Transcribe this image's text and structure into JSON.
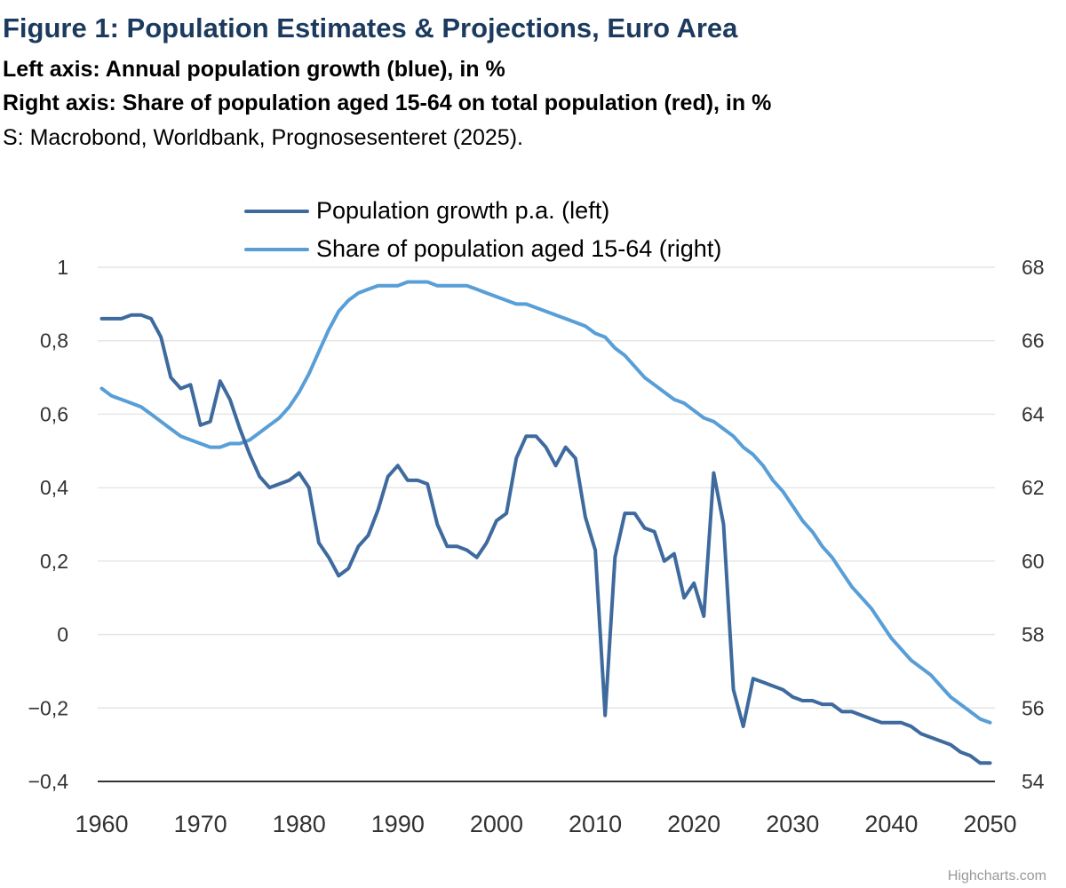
{
  "header": {
    "title": "Figure 1: Population Estimates & Projections, Euro Area",
    "subtitle_left": "Left axis: Annual population growth (blue), in %",
    "subtitle_right": "Right axis: Share of population aged 15-64 on total population (red), in %",
    "source": "S: Macrobond, Worldbank, Prognosesenteret (2025)."
  },
  "credit": "Highcharts.com",
  "colors": {
    "title": "#1b3a5e",
    "growth": "#3e6a9e",
    "share": "#589ed7",
    "grid": "#e6e6e6",
    "axis": "#333333"
  },
  "chart_data": {
    "type": "line",
    "title": "Figure 1: Population Estimates & Projections, Euro Area",
    "xlabel": "",
    "ylabel_left": "Annual population growth, %",
    "ylabel_right": "Share of population aged 15-64, %",
    "xlim": [
      1960,
      2050
    ],
    "ylim_left": [
      -0.4,
      1
    ],
    "ylim_right": [
      54,
      68
    ],
    "grid": true,
    "legend_position": "top-center",
    "x_ticks": [
      "1960",
      "1970",
      "1980",
      "1990",
      "2000",
      "2010",
      "2020",
      "2030",
      "2040",
      "2050"
    ],
    "y_left_ticks": [
      "1",
      "0,8",
      "0,6",
      "0,4",
      "0,2",
      "0",
      "−0,2",
      "−0,4"
    ],
    "y_right_ticks": [
      "68",
      "66",
      "64",
      "62",
      "60",
      "58",
      "56",
      "54"
    ],
    "x_start": 1960,
    "series": [
      {
        "name": "Population growth p.a. (left)",
        "axis": "left",
        "color": "#3e6a9e",
        "values": [
          0.86,
          0.86,
          0.86,
          0.87,
          0.87,
          0.86,
          0.81,
          0.7,
          0.67,
          0.68,
          0.57,
          0.58,
          0.69,
          0.64,
          0.56,
          0.49,
          0.43,
          0.4,
          0.41,
          0.42,
          0.44,
          0.4,
          0.25,
          0.21,
          0.16,
          0.18,
          0.24,
          0.27,
          0.34,
          0.43,
          0.46,
          0.42,
          0.42,
          0.41,
          0.3,
          0.24,
          0.24,
          0.23,
          0.21,
          0.25,
          0.31,
          0.33,
          0.48,
          0.54,
          0.54,
          0.51,
          0.46,
          0.51,
          0.48,
          0.32,
          0.23,
          -0.22,
          0.21,
          0.33,
          0.33,
          0.29,
          0.28,
          0.2,
          0.22,
          0.1,
          0.14,
          0.05,
          0.44,
          0.3,
          -0.15,
          -0.25,
          -0.12,
          -0.13,
          -0.14,
          -0.15,
          -0.17,
          -0.18,
          -0.18,
          -0.19,
          -0.19,
          -0.21,
          -0.21,
          -0.22,
          -0.23,
          -0.24,
          -0.24,
          -0.24,
          -0.25,
          -0.27,
          -0.28,
          -0.29,
          -0.3,
          -0.32,
          -0.33,
          -0.35,
          -0.35
        ]
      },
      {
        "name": "Share of population aged 15-64 (right)",
        "axis": "right",
        "color": "#589ed7",
        "values": [
          64.7,
          64.5,
          64.4,
          64.3,
          64.2,
          64.0,
          63.8,
          63.6,
          63.4,
          63.3,
          63.2,
          63.1,
          63.1,
          63.2,
          63.2,
          63.3,
          63.5,
          63.7,
          63.9,
          64.2,
          64.6,
          65.1,
          65.7,
          66.3,
          66.8,
          67.1,
          67.3,
          67.4,
          67.5,
          67.5,
          67.5,
          67.6,
          67.6,
          67.6,
          67.5,
          67.5,
          67.5,
          67.5,
          67.4,
          67.3,
          67.2,
          67.1,
          67.0,
          67.0,
          66.9,
          66.8,
          66.7,
          66.6,
          66.5,
          66.4,
          66.2,
          66.1,
          65.8,
          65.6,
          65.3,
          65.0,
          64.8,
          64.6,
          64.4,
          64.3,
          64.1,
          63.9,
          63.8,
          63.6,
          63.4,
          63.1,
          62.9,
          62.6,
          62.2,
          61.9,
          61.5,
          61.1,
          60.8,
          60.4,
          60.1,
          59.7,
          59.3,
          59.0,
          58.7,
          58.3,
          57.9,
          57.6,
          57.3,
          57.1,
          56.9,
          56.6,
          56.3,
          56.1,
          55.9,
          55.7,
          55.6
        ]
      }
    ]
  }
}
